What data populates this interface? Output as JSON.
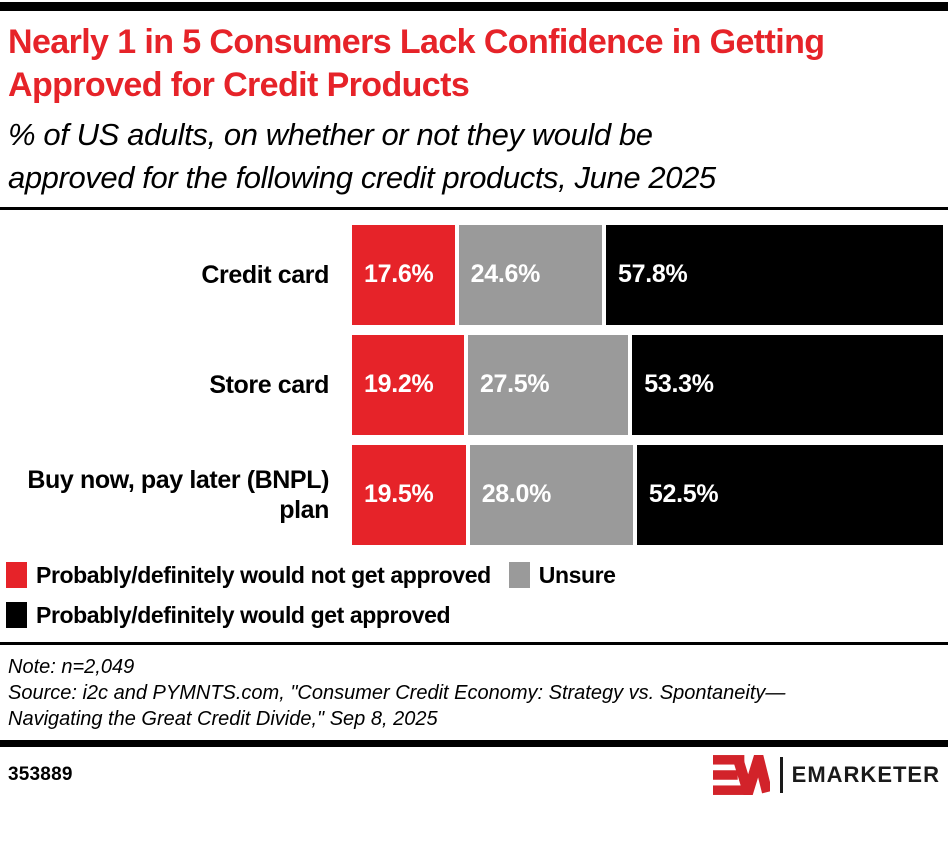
{
  "header": {
    "title": "Nearly 1 in 5 Consumers Lack Confidence in Getting Approved for Credit Products",
    "subtitle": "% of US adults, on whether or not they would be approved for the following credit products, June 2025"
  },
  "colors": {
    "accent_red": "#E62329",
    "neutral_gray": "#9A9A9A",
    "bar_black": "#000000",
    "logo_red": "#D2232A"
  },
  "chart_data": {
    "type": "bar",
    "orientation": "horizontal",
    "stacked": true,
    "unit": "%",
    "xlim": [
      0,
      100
    ],
    "grid": false,
    "legend_position": "bottom",
    "categories": [
      "Credit card",
      "Store card",
      "Buy now, pay later (BNPL) plan"
    ],
    "series": [
      {
        "name": "Probably/definitely would not get approved",
        "color": "#E62329",
        "values": [
          17.6,
          19.2,
          19.5
        ]
      },
      {
        "name": "Unsure",
        "color": "#9A9A9A",
        "values": [
          24.6,
          27.5,
          28.0
        ]
      },
      {
        "name": "Probably/definitely would get approved",
        "color": "#000000",
        "values": [
          57.8,
          53.3,
          52.5
        ]
      }
    ],
    "bar_labels": [
      [
        "17.6%",
        "24.6%",
        "57.8%"
      ],
      [
        "19.2%",
        "27.5%",
        "53.3%"
      ],
      [
        "19.5%",
        "28.0%",
        "52.5%"
      ]
    ]
  },
  "notes": {
    "note": "Note: n=2,049",
    "source_line1": "Source: i2c and PYMNTS.com, \"Consumer Credit Economy: Strategy vs. Spontaneity—",
    "source_line2": "Navigating the Great Credit Divide,\" Sep 8, 2025"
  },
  "footer": {
    "chart_id": "353889",
    "brand_name": "EMARKETER"
  }
}
